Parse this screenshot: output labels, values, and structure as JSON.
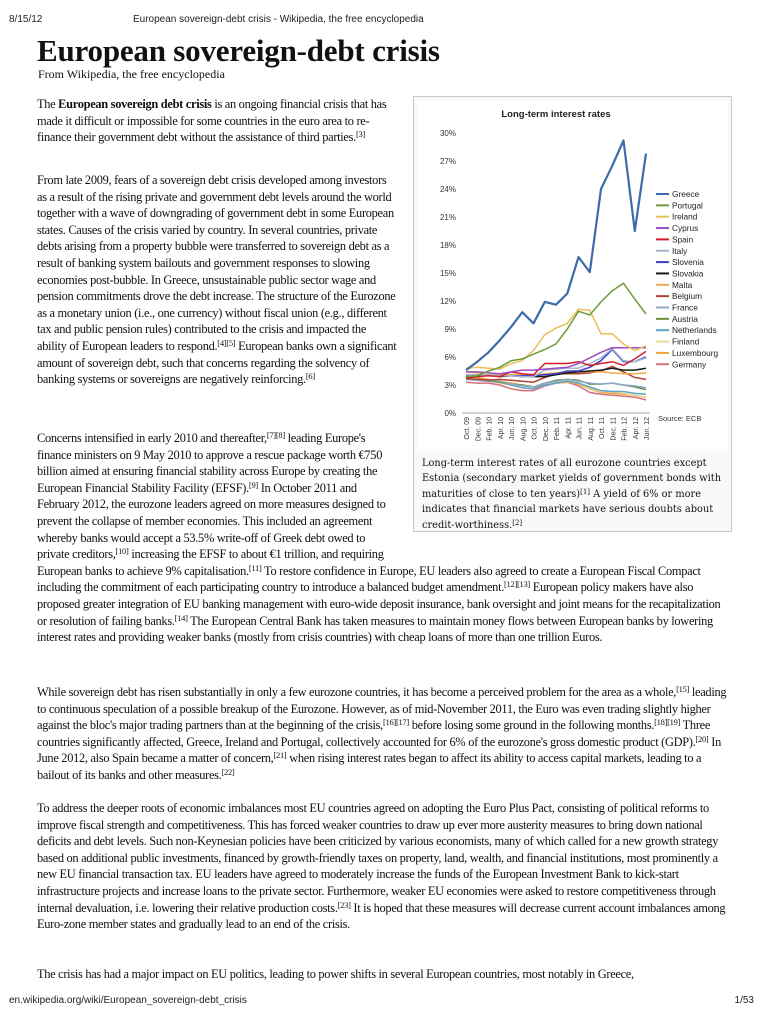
{
  "header": {
    "date": "8/15/12",
    "doc_title": "European sovereign-debt crisis - Wikipedia, the free encyclopedia"
  },
  "article": {
    "title": "European sovereign-debt crisis",
    "subtitle": "From Wikipedia, the free encyclopedia",
    "p1": {
      "t1": "The ",
      "bold": "European sovereign debt crisis",
      "t2": " is an ongoing financial crisis that has made it difficult or impossible for some countries in the euro area to re-finance their government debt without the assistance of third parties.",
      "r1": "[3]"
    },
    "p2": {
      "t1": "From late 2009, fears of a sovereign debt crisis developed among investors as a result of the rising private and government debt levels around the world together with a wave of downgrading of government debt in some European states. Causes of the crisis varied by country. In several countries, private debts arising from a property bubble were transferred to sovereign debt as a result of banking system bailouts and government responses to slowing economies post-bubble. In Greece, unsustainable public sector wage and pension commitments drove the debt increase. The structure of the Eurozone as a monetary union (i.e., one currency) without fiscal union (e.g., different tax and public pension rules) contributed to the crisis and impacted the ability of European leaders to respond.",
      "r1": "[4][5]",
      "t2": " European banks own a significant amount of sovereign debt, such that concerns regarding the solvency of banking systems or sovereigns are negatively reinforcing.",
      "r2": "[6]"
    },
    "p3": {
      "t1": "Concerns intensified in early 2010 and thereafter,",
      "r1": "[7][8]",
      "t2": " leading Europe's finance ministers on 9 May 2010 to approve a rescue package worth €750 billion aimed at ensuring financial stability across Europe by creating the European Financial Stability Facility (EFSF).",
      "r2": "[9]",
      "t3": " In October 2011 and February 2012, the eurozone leaders agreed on more measures designed to prevent the collapse of member economies. This included an agreement whereby banks would accept a 53.5% write-off of Greek debt owed to private creditors,",
      "r3": "[10]",
      "t4": " increasing the EFSF to about €1 trillion, and requiring European banks to achieve 9% capitalisation.",
      "r4": "[11]",
      "t5": " To restore confidence in Europe, EU leaders also agreed to create a European Fiscal Compact including the commitment of each participating country to introduce a balanced budget amendment.",
      "r5": "[12][13]",
      "t6": " European policy makers have also proposed greater integration of EU banking management with euro-wide deposit insurance, bank oversight and joint means for the recapitalization or resolution of failing banks.",
      "r6": "[14]",
      "t7": " The European Central Bank has taken measures to maintain money flows between European banks by lowering interest rates and providing weaker banks (mostly from crisis countries) with cheap loans of more than one trillion Euros."
    },
    "p4": {
      "t1": "While sovereign debt has risen substantially in only a few eurozone countries, it has become a perceived problem for the area as a whole,",
      "r1": "[15]",
      "t2": " leading to continuous speculation of a possible breakup of the Eurozone. However, as of mid-November 2011, the Euro was even trading slightly higher against the bloc's major trading partners than at the beginning of the crisis,",
      "r2": "[16][17]",
      "t3": " before losing some ground in the following months.",
      "r3": "[18][19]",
      "t4": " Three countries significantly affected, Greece, Ireland and Portugal, collectively accounted for 6% of the eurozone's gross domestic product (GDP).",
      "r4": "[20]",
      "t5": " In June 2012, also Spain became a matter of concern,",
      "r5": "[21]",
      "t6": " when rising interest rates began to affect its ability to access capital markets, leading to a bailout of its banks and other measures.",
      "r6": "[22]"
    },
    "p5": {
      "t1": "To address the deeper roots of economic imbalances most EU countries agreed on adopting the Euro Plus Pact, consisting of political reforms to improve fiscal strength and competitiveness. This has forced weaker countries to draw up ever more austerity measures to bring down national deficits and debt levels. Such non-Keynesian policies have been criticized by various economists, many of which called for a new growth strategy based on additional public investments, financed by growth-friendly taxes on property, land, wealth, and financial institutions, most prominently a new EU financial transaction tax. EU leaders have agreed to moderately increase the funds of the European Investment Bank to kick-start infrastructure projects and increase loans to the private sector. Furthermore, weaker EU economies were asked to restore competitiveness through internal devaluation, i.e. lowering their relative production costs.",
      "r1": "[23]",
      "t2": " It is hoped that these measures will decrease current account imbalances among Euro-zone member states and gradually lead to an end of the crisis."
    },
    "p6": "The crisis has had a major impact on EU politics, leading to power shifts in several European countries, most notably in Greece,"
  },
  "figure": {
    "caption": {
      "t1": "Long-term interest rates of all eurozone countries except Estonia (secondary market yields of government bonds with maturities of close to ten years)",
      "r1": "[1]",
      "t2": " A yield of 6% or more indicates that financial markets have serious doubts about credit-worthiness.",
      "r2": "[2]"
    }
  },
  "footer": {
    "url": "en.wikipedia.org/wiki/European_sovereign-debt_crisis",
    "page": "1/53"
  },
  "chart_data": {
    "type": "line",
    "title": "Long-term interest rates",
    "source": "Source: ECB",
    "ylim": [
      0,
      30
    ],
    "yticks": [
      "0%",
      "3%",
      "6%",
      "9%",
      "12%",
      "15%",
      "18%",
      "21%",
      "24%",
      "27%",
      "30%"
    ],
    "x": [
      "Oct. 09",
      "Dec. 09",
      "Feb. 10",
      "Apr. 10",
      "Jun. 10",
      "Aug. 10",
      "Oct. 10",
      "Dec. 10",
      "Feb. 11",
      "Apr. 11",
      "Jun. 11",
      "Aug. 11",
      "Oct. 11",
      "Dec. 11",
      "Feb. 12",
      "Apr. 12",
      "Jun. 12"
    ],
    "legend_position": "right",
    "series": [
      {
        "name": "Greece",
        "color": "#3d6aa8",
        "values": [
          4.6,
          5.5,
          6.5,
          7.8,
          9.2,
          10.8,
          9.6,
          11.9,
          11.6,
          12.8,
          16.7,
          15.1,
          24.0,
          26.5,
          29.2,
          19.5,
          27.8
        ]
      },
      {
        "name": "Portugal",
        "color": "#6f9a3a",
        "values": [
          3.9,
          4.0,
          4.5,
          4.9,
          5.6,
          5.8,
          6.3,
          6.8,
          7.4,
          9.0,
          10.9,
          10.5,
          11.9,
          13.1,
          13.9,
          12.2,
          10.6
        ]
      },
      {
        "name": "Ireland",
        "color": "#e8bf5a",
        "values": [
          4.8,
          4.9,
          4.8,
          4.7,
          5.3,
          5.6,
          6.7,
          8.4,
          9.1,
          9.6,
          11.1,
          11.0,
          8.5,
          8.5,
          7.4,
          6.7,
          7.2
        ]
      },
      {
        "name": "Cyprus",
        "color": "#9b4dc4",
        "values": [
          4.4,
          4.4,
          4.3,
          4.2,
          4.4,
          4.6,
          4.6,
          4.7,
          4.8,
          4.9,
          5.3,
          5.9,
          6.5,
          7.0,
          7.0,
          7.0,
          7.0
        ]
      },
      {
        "name": "Spain",
        "color": "#d41f2a",
        "values": [
          3.8,
          3.9,
          4.0,
          3.9,
          4.4,
          4.2,
          4.1,
          5.3,
          5.3,
          5.3,
          5.5,
          5.1,
          5.3,
          5.5,
          5.1,
          5.8,
          6.6
        ]
      },
      {
        "name": "Italy",
        "color": "#a6b6cc",
        "values": [
          4.1,
          4.1,
          4.1,
          4.0,
          4.0,
          3.9,
          3.9,
          4.6,
          4.7,
          4.8,
          4.8,
          5.3,
          5.9,
          6.9,
          5.6,
          5.5,
          5.9
        ]
      },
      {
        "name": "Slovenia",
        "color": "#3a3ec9",
        "values": [
          4.0,
          4.0,
          4.0,
          4.0,
          4.0,
          4.0,
          4.0,
          4.1,
          4.2,
          4.5,
          4.5,
          4.9,
          5.6,
          6.8,
          5.5,
          5.5,
          6.0
        ]
      },
      {
        "name": "Slovakia",
        "color": "#1a1a1a",
        "values": [
          3.8,
          3.9,
          4.1,
          3.9,
          4.0,
          3.9,
          3.9,
          3.9,
          4.1,
          4.3,
          4.4,
          4.5,
          4.6,
          4.8,
          4.6,
          4.6,
          4.8
        ]
      },
      {
        "name": "Malta",
        "color": "#f0a84f",
        "values": [
          4.4,
          4.3,
          4.3,
          4.1,
          4.1,
          4.1,
          4.1,
          4.2,
          4.3,
          4.4,
          4.4,
          4.4,
          4.4,
          4.3,
          4.2,
          4.2,
          4.3
        ]
      },
      {
        "name": "Belgium",
        "color": "#b0452b",
        "values": [
          3.7,
          3.6,
          3.5,
          3.6,
          3.5,
          3.4,
          3.3,
          3.8,
          4.2,
          4.2,
          4.2,
          4.3,
          4.5,
          5.0,
          4.4,
          3.8,
          3.6
        ]
      },
      {
        "name": "France",
        "color": "#8fa7c8",
        "values": [
          3.6,
          3.5,
          3.5,
          3.4,
          3.1,
          2.9,
          2.8,
          3.2,
          3.4,
          3.6,
          3.4,
          3.2,
          3.1,
          3.2,
          3.0,
          2.9,
          2.7
        ]
      },
      {
        "name": "Austria",
        "color": "#6b8e3a",
        "values": [
          3.7,
          3.6,
          3.5,
          3.3,
          3.1,
          3.0,
          2.8,
          3.2,
          3.5,
          3.6,
          3.5,
          3.1,
          3.1,
          3.2,
          3.0,
          2.8,
          2.5
        ]
      },
      {
        "name": "Netherlands",
        "color": "#5aa7c9",
        "values": [
          3.6,
          3.5,
          3.4,
          3.3,
          3.0,
          2.7,
          2.6,
          3.0,
          3.2,
          3.4,
          3.2,
          2.8,
          2.4,
          2.3,
          2.3,
          2.1,
          2.0
        ]
      },
      {
        "name": "Finland",
        "color": "#efd99a",
        "values": [
          3.6,
          3.5,
          3.4,
          3.2,
          3.0,
          2.7,
          2.6,
          3.0,
          3.3,
          3.4,
          3.2,
          2.7,
          2.3,
          2.3,
          2.1,
          1.9,
          1.7
        ]
      },
      {
        "name": "Luxembourg",
        "color": "#e8a53c",
        "values": [
          3.9,
          3.8,
          3.6,
          3.4,
          3.2,
          3.0,
          2.8,
          3.0,
          3.2,
          3.3,
          3.1,
          2.6,
          2.2,
          2.1,
          2.0,
          1.9,
          1.7
        ]
      },
      {
        "name": "Germany",
        "color": "#d56f7b",
        "values": [
          3.3,
          3.2,
          3.2,
          3.0,
          2.6,
          2.4,
          2.4,
          2.9,
          3.2,
          3.3,
          2.9,
          2.2,
          2.0,
          1.9,
          1.8,
          1.7,
          1.4
        ]
      }
    ]
  }
}
